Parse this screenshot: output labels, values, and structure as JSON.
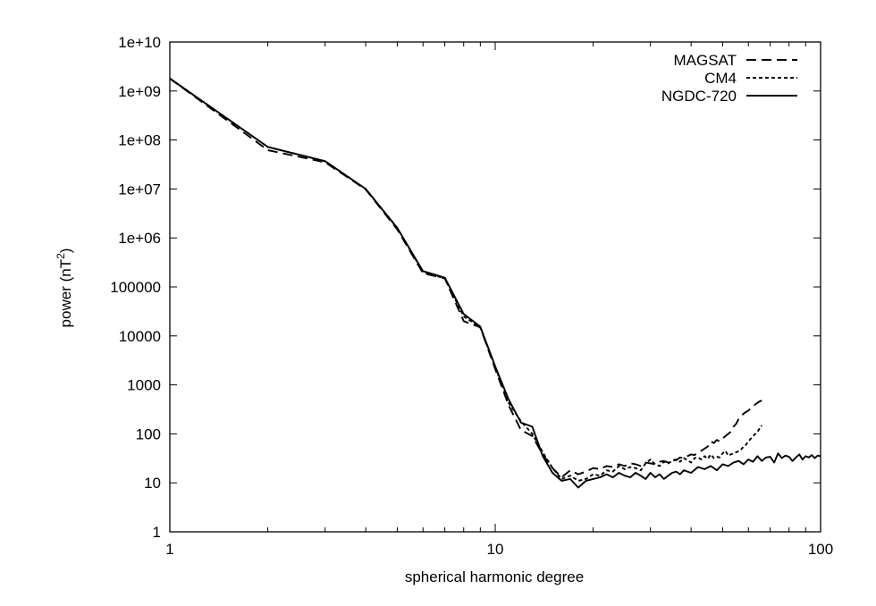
{
  "chart_data": {
    "type": "line",
    "title": "",
    "xlabel": "spherical harmonic degree",
    "ylabel": {
      "base": "power (nT",
      "sup": "2",
      "tail": ")"
    },
    "x_scale": "log",
    "y_scale": "log",
    "xlim": [
      1,
      100
    ],
    "ylim": [
      1,
      10000000000
    ],
    "x_ticks": [
      {
        "value": 1,
        "label": "1"
      },
      {
        "value": 10,
        "label": "10"
      },
      {
        "value": 100,
        "label": "100"
      }
    ],
    "y_ticks": [
      {
        "value": 1,
        "label": "1"
      },
      {
        "value": 10,
        "label": "10"
      },
      {
        "value": 100,
        "label": "100"
      },
      {
        "value": 1000,
        "label": "1000"
      },
      {
        "value": 10000,
        "label": "10000"
      },
      {
        "value": 100000,
        "label": "100000"
      },
      {
        "value": 1000000,
        "label": "1e+06"
      },
      {
        "value": 10000000,
        "label": "1e+07"
      },
      {
        "value": 100000000,
        "label": "1e+08"
      },
      {
        "value": 1000000000,
        "label": "1e+09"
      },
      {
        "value": 10000000000,
        "label": "1e+10"
      }
    ],
    "grid": false,
    "legend_position": "top-right",
    "series": [
      {
        "name": "MAGSAT",
        "dash": "long",
        "x": [
          1,
          2,
          3,
          4,
          5,
          6,
          7,
          8,
          9,
          10,
          11,
          12,
          13,
          14,
          15,
          16,
          17,
          18,
          19,
          20,
          21,
          22,
          23,
          24,
          25,
          26,
          27,
          28,
          29,
          30,
          31,
          32,
          33,
          34,
          35,
          36,
          37,
          38,
          39,
          40,
          41,
          42,
          43,
          44,
          45,
          46,
          47,
          48,
          49,
          50,
          51,
          52,
          53,
          54,
          55,
          56,
          57,
          58,
          59,
          60,
          61,
          62,
          63,
          64,
          65,
          66
        ],
        "y": [
          1800000000,
          62000000,
          35000000,
          9800000,
          1500000,
          190000,
          150000,
          20000,
          15000,
          2100,
          380,
          120,
          90,
          38,
          20,
          13,
          18,
          15,
          17,
          20,
          19,
          22,
          21,
          24,
          22,
          25,
          24,
          22,
          26,
          25,
          24,
          27,
          28,
          26,
          30,
          29,
          33,
          32,
          35,
          38,
          37,
          42,
          45,
          50,
          55,
          70,
          65,
          75,
          70,
          80,
          90,
          100,
          110,
          140,
          160,
          200,
          230,
          260,
          280,
          300,
          330,
          360,
          400,
          430,
          460,
          480
        ]
      },
      {
        "name": "CM4",
        "dash": "short",
        "x": [
          1,
          2,
          3,
          4,
          5,
          6,
          7,
          8,
          9,
          10,
          11,
          12,
          13,
          14,
          15,
          16,
          17,
          18,
          19,
          20,
          21,
          22,
          23,
          24,
          25,
          26,
          27,
          28,
          29,
          30,
          31,
          32,
          33,
          34,
          35,
          36,
          37,
          38,
          39,
          40,
          41,
          42,
          43,
          44,
          45,
          46,
          47,
          48,
          49,
          50,
          51,
          52,
          53,
          54,
          55,
          56,
          57,
          58,
          59,
          60,
          61,
          62,
          63,
          64,
          65,
          66
        ],
        "y": [
          1800000000,
          72000000,
          37000000,
          10000000,
          1600000,
          200000,
          150000,
          25000,
          15000,
          2300,
          430,
          180,
          100,
          42,
          20,
          12,
          14,
          11,
          12,
          15,
          14,
          18,
          17,
          22,
          19,
          21,
          20,
          18,
          25,
          30,
          24,
          22,
          27,
          25,
          28,
          30,
          27,
          32,
          29,
          26,
          32,
          33,
          30,
          35,
          31,
          38,
          32,
          34,
          33,
          40,
          45,
          36,
          38,
          40,
          42,
          44,
          48,
          55,
          60,
          70,
          80,
          90,
          100,
          110,
          130,
          150
        ]
      },
      {
        "name": "NGDC-720",
        "dash": "solid",
        "x": [
          1,
          2,
          3,
          4,
          5,
          6,
          7,
          8,
          9,
          10,
          11,
          12,
          13,
          14,
          15,
          16,
          17,
          18,
          19,
          20,
          21,
          22,
          23,
          24,
          25,
          26,
          27,
          28,
          29,
          30,
          31,
          32,
          33,
          34,
          35,
          36,
          37,
          38,
          39,
          40,
          42,
          44,
          46,
          48,
          50,
          52,
          54,
          56,
          58,
          60,
          62,
          64,
          66,
          68,
          70,
          72,
          74,
          76,
          78,
          80,
          82,
          84,
          86,
          88,
          90,
          92,
          94,
          96,
          98,
          100
        ],
        "y": [
          1800000000,
          72000000,
          37000000,
          10000000,
          1600000,
          210000,
          155000,
          28000,
          15500,
          2400,
          500,
          170,
          140,
          35,
          16,
          11,
          12,
          8,
          11,
          12,
          13,
          15,
          13,
          16,
          14,
          13,
          16,
          14,
          12,
          16,
          13,
          15,
          12,
          14,
          16,
          17,
          15,
          18,
          17,
          16,
          21,
          19,
          22,
          18,
          24,
          22,
          26,
          28,
          24,
          30,
          27,
          35,
          28,
          33,
          34,
          26,
          40,
          32,
          36,
          34,
          28,
          33,
          38,
          30,
          35,
          33,
          37,
          32,
          36,
          35
        ]
      }
    ]
  }
}
